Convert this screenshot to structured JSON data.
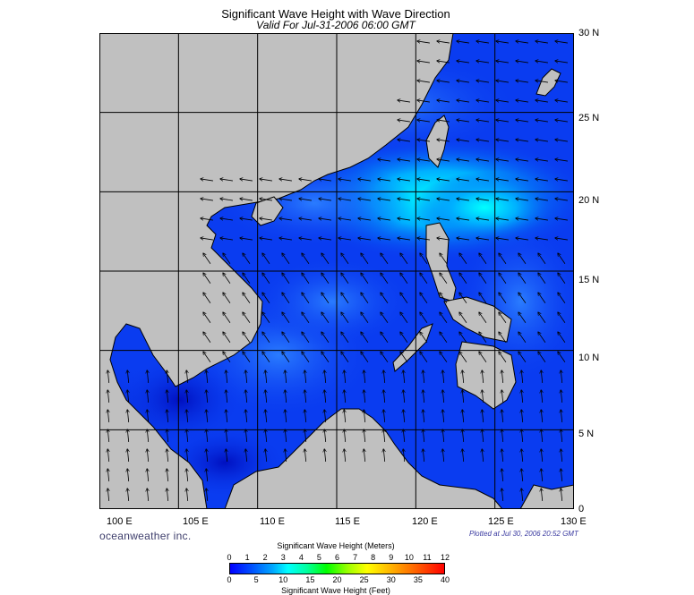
{
  "title": "Significant Wave Height with Wave Direction",
  "subtitle": "Valid For Jul-31-2006 06:00 GMT",
  "lat_labels": [
    "30 N",
    "25 N",
    "20 N",
    "15 N",
    "10 N",
    "5 N",
    "0"
  ],
  "lon_labels": [
    "100 E",
    "105 E",
    "110 E",
    "115 E",
    "120 E",
    "125 E",
    "130 E"
  ],
  "brand": "oceanweather inc.",
  "plotted": "Plotted at Jul 30, 2006 20:52 GMT",
  "legend": {
    "title_meters": "Significant Wave Height (Meters)",
    "title_feet": "Significant Wave Height (Feet)",
    "meters_ticks": [
      "0",
      "1",
      "2",
      "3",
      "4",
      "5",
      "6",
      "7",
      "8",
      "9",
      "10",
      "11",
      "12"
    ],
    "feet_ticks": [
      "0",
      "5",
      "10",
      "15",
      "20",
      "25",
      "30",
      "35",
      "40"
    ]
  },
  "map": {
    "lon_range": [
      100,
      130
    ],
    "lat_range": [
      0,
      30
    ],
    "land_color": "#c0c0c0",
    "ocean_base_color": "#0a3cf0",
    "gridlines": "on"
  }
}
